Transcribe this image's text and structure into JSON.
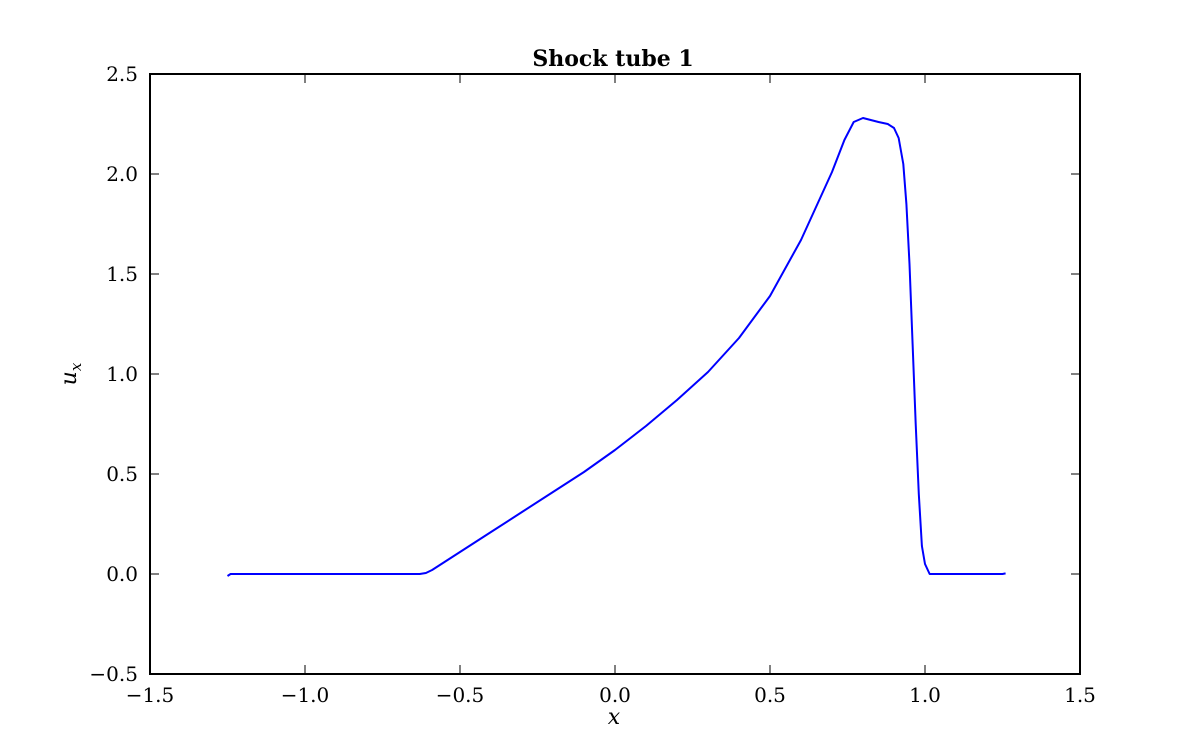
{
  "chart_data": {
    "type": "line",
    "title": "Shock tube 1",
    "xlabel": "x",
    "ylabel": {
      "base": "u",
      "subscript": "x"
    },
    "xlim": [
      -1.5,
      1.5
    ],
    "ylim": [
      -0.5,
      2.5
    ],
    "xticks": [
      -1.5,
      -1.0,
      -0.5,
      0.0,
      0.5,
      1.0,
      1.5
    ],
    "xtick_labels": [
      "−1.5",
      "−1.0",
      "−0.5",
      "0.0",
      "0.5",
      "1.0",
      "1.5"
    ],
    "yticks": [
      -0.5,
      0.0,
      0.5,
      1.0,
      1.5,
      2.0,
      2.5
    ],
    "ytick_labels": [
      "−0.5",
      "0.0",
      "0.5",
      "1.0",
      "1.5",
      "2.0",
      "2.5"
    ],
    "grid": false,
    "series": [
      {
        "name": "u_x",
        "color": "#0000ff",
        "x": [
          -1.25,
          -1.24,
          -1.0,
          -0.8,
          -0.63,
          -0.61,
          -0.59,
          -0.57,
          -0.55,
          -0.5,
          -0.4,
          -0.3,
          -0.2,
          -0.1,
          0.0,
          0.1,
          0.2,
          0.3,
          0.4,
          0.5,
          0.6,
          0.7,
          0.74,
          0.77,
          0.8,
          0.85,
          0.88,
          0.9,
          0.915,
          0.93,
          0.94,
          0.95,
          0.96,
          0.97,
          0.98,
          0.99,
          1.0,
          1.015,
          1.05,
          1.1,
          1.2,
          1.25,
          1.26
        ],
        "y": [
          -0.01,
          0.0,
          0.0,
          0.0,
          0.0,
          0.005,
          0.02,
          0.04,
          0.06,
          0.11,
          0.21,
          0.31,
          0.41,
          0.51,
          0.62,
          0.74,
          0.87,
          1.01,
          1.18,
          1.39,
          1.67,
          2.01,
          2.17,
          2.26,
          2.28,
          2.26,
          2.25,
          2.23,
          2.18,
          2.05,
          1.85,
          1.55,
          1.15,
          0.75,
          0.4,
          0.14,
          0.05,
          0.0,
          0.0,
          0.0,
          0.0,
          0.0,
          0.003
        ]
      }
    ]
  }
}
